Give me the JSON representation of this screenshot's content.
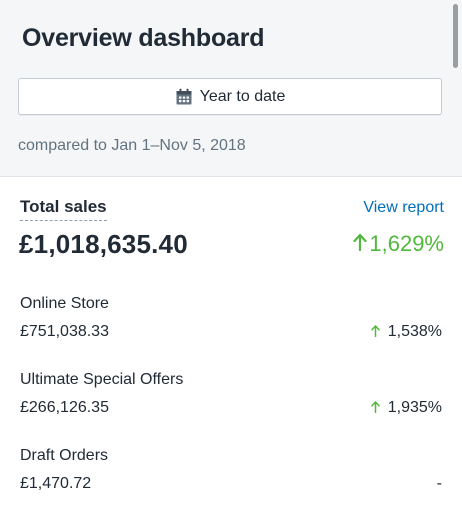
{
  "header": {
    "title": "Overview dashboard",
    "date_range_label": "Year to date",
    "comparison_text": "compared to Jan 1–Nov 5, 2018"
  },
  "total_sales": {
    "label": "Total sales",
    "view_report": "View report",
    "value": "£1,018,635.40",
    "change": "1,629%",
    "trend": "up"
  },
  "channels": [
    {
      "name": "Online Store",
      "value": "£751,038.33",
      "change": "1,538%",
      "trend": "up"
    },
    {
      "name": "Ultimate Special Offers",
      "value": "£266,126.35",
      "change": "1,935%",
      "trend": "up"
    },
    {
      "name": "Draft Orders",
      "value": "£1,470.72",
      "change": "-",
      "trend": "none"
    }
  ],
  "colors": {
    "accent_green": "#50b83c",
    "link_blue": "#006fbb",
    "header_bg": "#f4f6f8"
  },
  "icons": {
    "date_button": "calendar-icon",
    "up": "arrow-up-icon"
  }
}
